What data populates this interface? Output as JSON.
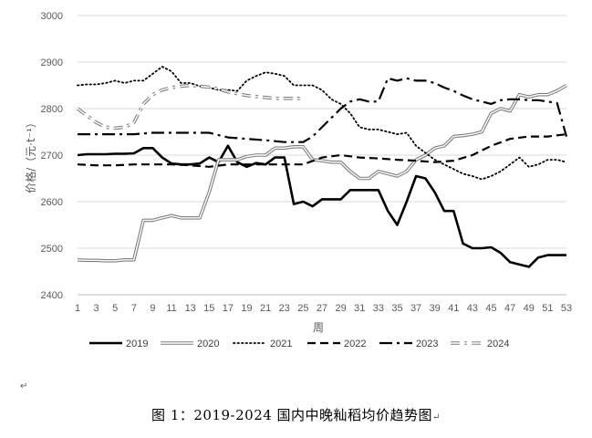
{
  "chart_data": {
    "type": "line",
    "xlabel": "周",
    "ylabel": "价格/（元·t⁻¹）",
    "ylim": [
      2400,
      3000
    ],
    "yticks": [
      2400,
      2500,
      2600,
      2700,
      2800,
      2900,
      3000
    ],
    "xticks": [
      1,
      3,
      5,
      7,
      9,
      11,
      13,
      15,
      17,
      19,
      21,
      23,
      25,
      27,
      29,
      31,
      33,
      35,
      37,
      39,
      41,
      43,
      45,
      47,
      49,
      51,
      53
    ],
    "grid": "horizontal",
    "legend_position": "bottom",
    "series": [
      {
        "name": "2019",
        "style": "solid-thick",
        "color": "#000000",
        "x": [
          1,
          2,
          3,
          4,
          5,
          6,
          7,
          8,
          9,
          10,
          11,
          12,
          13,
          14,
          15,
          16,
          17,
          18,
          19,
          20,
          21,
          22,
          23,
          24,
          25,
          26,
          27,
          28,
          29,
          30,
          31,
          32,
          33,
          34,
          35,
          36,
          37,
          38,
          39,
          40,
          41,
          42,
          43,
          44,
          45,
          46,
          47,
          48,
          49,
          50,
          51,
          52,
          53
        ],
        "values": [
          2700,
          2702,
          2702,
          2702,
          2703,
          2703,
          2704,
          2715,
          2715,
          2695,
          2682,
          2680,
          2680,
          2682,
          2695,
          2685,
          2720,
          2685,
          2675,
          2683,
          2680,
          2695,
          2695,
          2595,
          2600,
          2590,
          2605,
          2605,
          2605,
          2625,
          2625,
          2625,
          2625,
          2580,
          2550,
          2600,
          2655,
          2650,
          2620,
          2580,
          2580,
          2510,
          2500,
          2500,
          2502,
          2490,
          2470,
          2465,
          2460,
          2480,
          2485,
          2485,
          2485
        ]
      },
      {
        "name": "2020",
        "style": "double",
        "color": "#808080",
        "x": [
          1,
          2,
          3,
          4,
          5,
          6,
          7,
          8,
          9,
          10,
          11,
          12,
          13,
          14,
          15,
          16,
          17,
          18,
          19,
          20,
          21,
          22,
          23,
          24,
          25,
          26,
          27,
          28,
          29,
          30,
          31,
          32,
          33,
          34,
          35,
          36,
          37,
          38,
          39,
          40,
          41,
          42,
          43,
          44,
          45,
          46,
          47,
          48,
          49,
          50,
          51,
          52,
          53
        ],
        "values": [
          2475,
          2474,
          2474,
          2473,
          2473,
          2475,
          2475,
          2560,
          2560,
          2565,
          2570,
          2565,
          2565,
          2565,
          2620,
          2690,
          2690,
          2690,
          2697,
          2700,
          2700,
          2715,
          2715,
          2718,
          2718,
          2690,
          2688,
          2685,
          2685,
          2665,
          2650,
          2650,
          2665,
          2660,
          2655,
          2665,
          2690,
          2700,
          2715,
          2720,
          2740,
          2742,
          2745,
          2750,
          2790,
          2800,
          2795,
          2830,
          2825,
          2830,
          2830,
          2838,
          2850
        ]
      },
      {
        "name": "2021",
        "style": "dotted",
        "color": "#000000",
        "x": [
          1,
          2,
          3,
          4,
          5,
          6,
          7,
          8,
          9,
          10,
          11,
          12,
          13,
          14,
          15,
          16,
          17,
          18,
          19,
          20,
          21,
          22,
          23,
          24,
          25,
          26,
          27,
          28,
          29,
          30,
          31,
          32,
          33,
          34,
          35,
          36,
          37,
          38,
          39,
          40,
          41,
          42,
          43,
          44,
          45,
          46,
          47,
          48,
          49,
          50,
          51,
          52,
          53
        ],
        "values": [
          2850,
          2852,
          2852,
          2855,
          2860,
          2855,
          2860,
          2860,
          2875,
          2890,
          2880,
          2855,
          2855,
          2848,
          2845,
          2840,
          2840,
          2838,
          2860,
          2870,
          2878,
          2875,
          2870,
          2850,
          2850,
          2850,
          2840,
          2820,
          2810,
          2790,
          2760,
          2755,
          2755,
          2750,
          2745,
          2748,
          2720,
          2705,
          2690,
          2680,
          2670,
          2660,
          2655,
          2648,
          2655,
          2665,
          2680,
          2695,
          2675,
          2680,
          2690,
          2690,
          2685
        ]
      },
      {
        "name": "2022",
        "style": "dashed",
        "color": "#000000",
        "x": [
          1,
          3,
          5,
          7,
          9,
          11,
          13,
          15,
          17,
          19,
          21,
          23,
          25,
          27,
          29,
          31,
          33,
          35,
          37,
          39,
          41,
          43,
          45,
          47,
          49,
          51,
          53
        ],
        "values": [
          2680,
          2678,
          2678,
          2680,
          2680,
          2680,
          2678,
          2675,
          2680,
          2680,
          2680,
          2680,
          2680,
          2695,
          2700,
          2695,
          2693,
          2690,
          2688,
          2685,
          2688,
          2700,
          2720,
          2735,
          2740,
          2740,
          2745
        ]
      },
      {
        "name": "2023",
        "style": "dash-dot",
        "color": "#000000",
        "x": [
          1,
          3,
          5,
          7,
          9,
          11,
          13,
          15,
          17,
          19,
          21,
          23,
          25,
          26,
          27,
          28,
          29,
          30,
          31,
          32,
          33,
          34,
          35,
          36,
          37,
          38,
          39,
          40,
          41,
          42,
          43,
          44,
          45,
          46,
          47,
          48,
          49,
          50,
          51,
          52,
          53
        ],
        "values": [
          2745,
          2745,
          2745,
          2745,
          2748,
          2748,
          2748,
          2748,
          2738,
          2735,
          2732,
          2728,
          2728,
          2740,
          2760,
          2780,
          2800,
          2815,
          2820,
          2815,
          2815,
          2865,
          2860,
          2865,
          2860,
          2860,
          2855,
          2845,
          2838,
          2828,
          2820,
          2815,
          2810,
          2818,
          2820,
          2820,
          2818,
          2818,
          2815,
          2812,
          2740
        ]
      },
      {
        "name": "2024",
        "style": "double-dash-dot",
        "color": "#808080",
        "x": [
          1,
          2,
          3,
          4,
          5,
          6,
          7,
          8,
          9,
          10,
          11,
          12,
          13,
          14,
          15,
          16,
          17,
          18,
          19,
          20,
          21,
          22,
          23,
          24,
          25
        ],
        "values": [
          2800,
          2785,
          2770,
          2760,
          2758,
          2760,
          2770,
          2810,
          2830,
          2840,
          2845,
          2848,
          2850,
          2848,
          2846,
          2842,
          2836,
          2832,
          2828,
          2826,
          2824,
          2822,
          2822,
          2822,
          2822
        ]
      }
    ]
  },
  "caption": {
    "text": "图 1：2019-2024 国内中晚籼稻均价趋势图",
    "mark": "↵",
    "para_mark": "↵"
  }
}
